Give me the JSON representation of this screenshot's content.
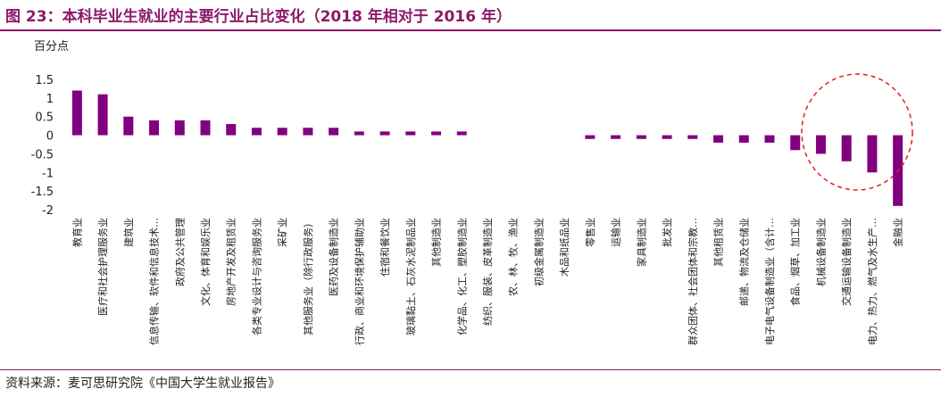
{
  "title": "图 23：本科毕业生就业的主要行业占比变化（2018 年相对于 2016 年）",
  "source": "资料来源：麦可思研究院《中国大学生就业报告》",
  "colors": {
    "bar": "#800080",
    "title": "#8b1a6b",
    "highlight": "#e02020"
  },
  "chart_data": {
    "type": "bar",
    "title": "",
    "xlabel": "",
    "ylabel": "百分点",
    "ylim": [
      -2,
      1.5
    ],
    "yticks": [
      "1.5",
      "1",
      "0.5",
      "0",
      "-0.5",
      "-1",
      "-1.5",
      "-2"
    ],
    "ytick_values": [
      1.5,
      1,
      0.5,
      0,
      -0.5,
      -1,
      -1.5,
      -2
    ],
    "grid": false,
    "legend": "none",
    "categories": [
      "教育业",
      "医疗和社会护理服务业",
      "建筑业",
      "信息传输、软件和信息技术…",
      "政府及公共管理",
      "文化、体育和娱乐业",
      "房地产开发及租赁业",
      "各类专业设计与咨询服务业",
      "采矿业",
      "其他服务业（除行政服务）",
      "医药及设备制造业",
      "行政、商业和环境保护辅助业",
      "住宿和餐饮业",
      "玻璃黏土、石灰水泥制品业",
      "其他制造业",
      "化学品、化工、塑胶制造业",
      "纺织、服装、皮革制造业",
      "农、林、牧、渔业",
      "初级金属制造业",
      "木品和纸品业",
      "零售业",
      "运输业",
      "家具制造业",
      "批发业",
      "群众团体、社会团体和宗教…",
      "其他租赁业",
      "邮递、物流及仓储业",
      "电子电气设备制造业（含计…",
      "食品、烟草、加工业",
      "机械设备制造业",
      "交通运输设备制造业",
      "电力、热力、燃气及水生产…",
      "金融业"
    ],
    "values": [
      1.2,
      1.1,
      0.5,
      0.4,
      0.4,
      0.4,
      0.3,
      0.2,
      0.2,
      0.2,
      0.2,
      0.1,
      0.1,
      0.1,
      0.1,
      0.1,
      0,
      0,
      0,
      0,
      -0.1,
      -0.1,
      -0.1,
      -0.1,
      -0.1,
      -0.2,
      -0.2,
      -0.2,
      -0.4,
      -0.5,
      -0.7,
      -1.0,
      -1.9
    ],
    "annotation": {
      "shape": "dashed-ellipse",
      "highlights": [
        "机械设备制造业",
        "交通运输设备制造业",
        "电力、热力、燃气及水生产…",
        "金融业"
      ]
    }
  }
}
